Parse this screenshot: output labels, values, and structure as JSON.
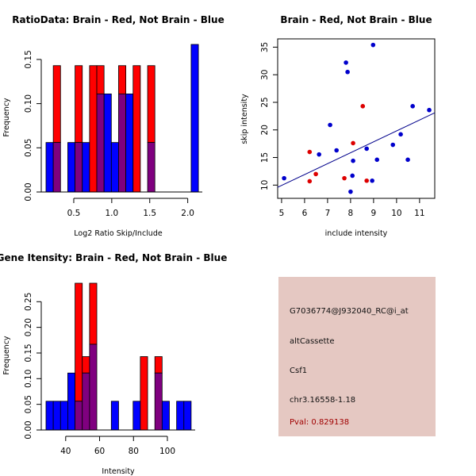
{
  "colors": {
    "red": "#ff0000",
    "blue": "#0000ff",
    "overlap": "#7f007f",
    "scatter_red": "#dd0000",
    "scatter_blue": "#0000cc",
    "regression_line": "#00008b",
    "panel_bg": "#e5c8c2",
    "pval_text": "#a00000"
  },
  "chart_data": [
    {
      "id": "ratio-histogram",
      "type": "bar",
      "title": "RatioData: Brain - Red, Not Brain - Blue",
      "xlabel": "Log2 Ratio Skip/Include",
      "ylabel": "Frequency",
      "xticks": [
        0.5,
        1.0,
        1.5,
        2.0
      ],
      "xtick_labels": [
        "0.5",
        "1.0",
        "1.5",
        "2.0"
      ],
      "yticks": [
        0.0,
        0.05,
        0.1,
        0.15
      ],
      "ytick_labels": [
        "0.00",
        "0.05",
        "0.10",
        "0.15"
      ],
      "xlim": [
        0.135,
        2.15
      ],
      "ylim": [
        0,
        0.167
      ],
      "bin_start": 0.135,
      "bin_width": 0.0955,
      "series": [
        {
          "name": "Brain",
          "color": "red",
          "values": [
            0,
            0.143,
            0,
            0,
            0.143,
            0,
            0.143,
            0.143,
            0,
            0,
            0.143,
            0,
            0.143,
            0,
            0.143,
            0,
            0,
            0,
            0,
            0,
            0
          ]
        },
        {
          "name": "Not Brain",
          "color": "blue",
          "values": [
            0.056,
            0.056,
            0,
            0.056,
            0.056,
            0.056,
            0,
            0.111,
            0.111,
            0.056,
            0.111,
            0.111,
            0,
            0,
            0.056,
            0,
            0,
            0,
            0,
            0,
            0.167
          ]
        }
      ]
    },
    {
      "id": "intensity-scatter",
      "type": "scatter",
      "title": "Brain - Red, Not Brain - Blue",
      "xlabel": "include intensity",
      "ylabel": "skip intensity",
      "xticks": [
        5,
        6,
        7,
        8,
        9,
        10,
        11
      ],
      "xtick_labels": [
        "5",
        "6",
        "7",
        "8",
        "9",
        "10",
        "11"
      ],
      "yticks": [
        10,
        15,
        20,
        25,
        30,
        35
      ],
      "ytick_labels": [
        "10",
        "15",
        "20",
        "25",
        "30",
        "35"
      ],
      "xlim": [
        4.83,
        11.66
      ],
      "ylim": [
        7.6,
        36.5
      ],
      "series": [
        {
          "name": "Not Brain",
          "color": "blue",
          "points": [
            [
              5.11,
              11.25
            ],
            [
              6.63,
              15.56
            ],
            [
              7.11,
              20.9
            ],
            [
              7.39,
              16.3
            ],
            [
              7.8,
              32.2
            ],
            [
              7.87,
              30.5
            ],
            [
              8.0,
              8.8
            ],
            [
              8.08,
              11.7
            ],
            [
              8.11,
              14.4
            ],
            [
              8.7,
              16.6
            ],
            [
              8.94,
              10.8
            ],
            [
              8.98,
              35.4
            ],
            [
              9.15,
              14.6
            ],
            [
              9.84,
              17.3
            ],
            [
              10.18,
              19.2
            ],
            [
              10.49,
              14.6
            ],
            [
              10.7,
              24.3
            ],
            [
              11.42,
              23.6
            ]
          ]
        },
        {
          "name": "Brain",
          "color": "red",
          "points": [
            [
              6.22,
              16.0
            ],
            [
              6.22,
              10.7
            ],
            [
              6.49,
              12.0
            ],
            [
              7.73,
              11.25
            ],
            [
              8.11,
              17.6
            ],
            [
              8.53,
              24.3
            ],
            [
              8.7,
              10.8
            ]
          ]
        }
      ],
      "regression_line": [
        [
          4.83,
          9.6
        ],
        [
          11.66,
          23.1
        ]
      ]
    },
    {
      "id": "gene-intensity-histogram",
      "type": "bar",
      "title": "Gene Itensity: Brain - Red, Not Brain - Blue",
      "xlabel": "Intensity",
      "ylabel": "Frequency",
      "xticks": [
        40,
        60,
        80,
        100
      ],
      "xtick_labels": [
        "40",
        "60",
        "80",
        "100"
      ],
      "yticks": [
        0.0,
        0.05,
        0.1,
        0.15,
        0.2,
        0.25
      ],
      "ytick_labels": [
        "0.00",
        "0.05",
        "0.10",
        "0.15",
        "0.20",
        "0.25"
      ],
      "xlim": [
        28.4,
        114.5
      ],
      "ylim": [
        0,
        0.286
      ],
      "bin_start": 28.4,
      "bin_width": 4.28,
      "series": [
        {
          "name": "Brain",
          "color": "red",
          "values": [
            0,
            0,
            0,
            0,
            0.286,
            0.143,
            0.286,
            0,
            0,
            0,
            0,
            0,
            0,
            0.143,
            0,
            0.143,
            0,
            0,
            0,
            0
          ]
        },
        {
          "name": "Not Brain",
          "color": "blue",
          "values": [
            0.056,
            0.056,
            0.056,
            0.111,
            0.056,
            0.111,
            0.167,
            0,
            0,
            0.056,
            0,
            0,
            0.056,
            0,
            0,
            0.111,
            0.056,
            0,
            0.056,
            0.056
          ]
        }
      ]
    }
  ],
  "info_panel": {
    "probe_id": "G7036774@J932040_RC@i_at",
    "event_type": "altCassette",
    "gene": "Csf1",
    "location": "chr3.16558-1.18",
    "pval": "Pval: 0.829138"
  }
}
